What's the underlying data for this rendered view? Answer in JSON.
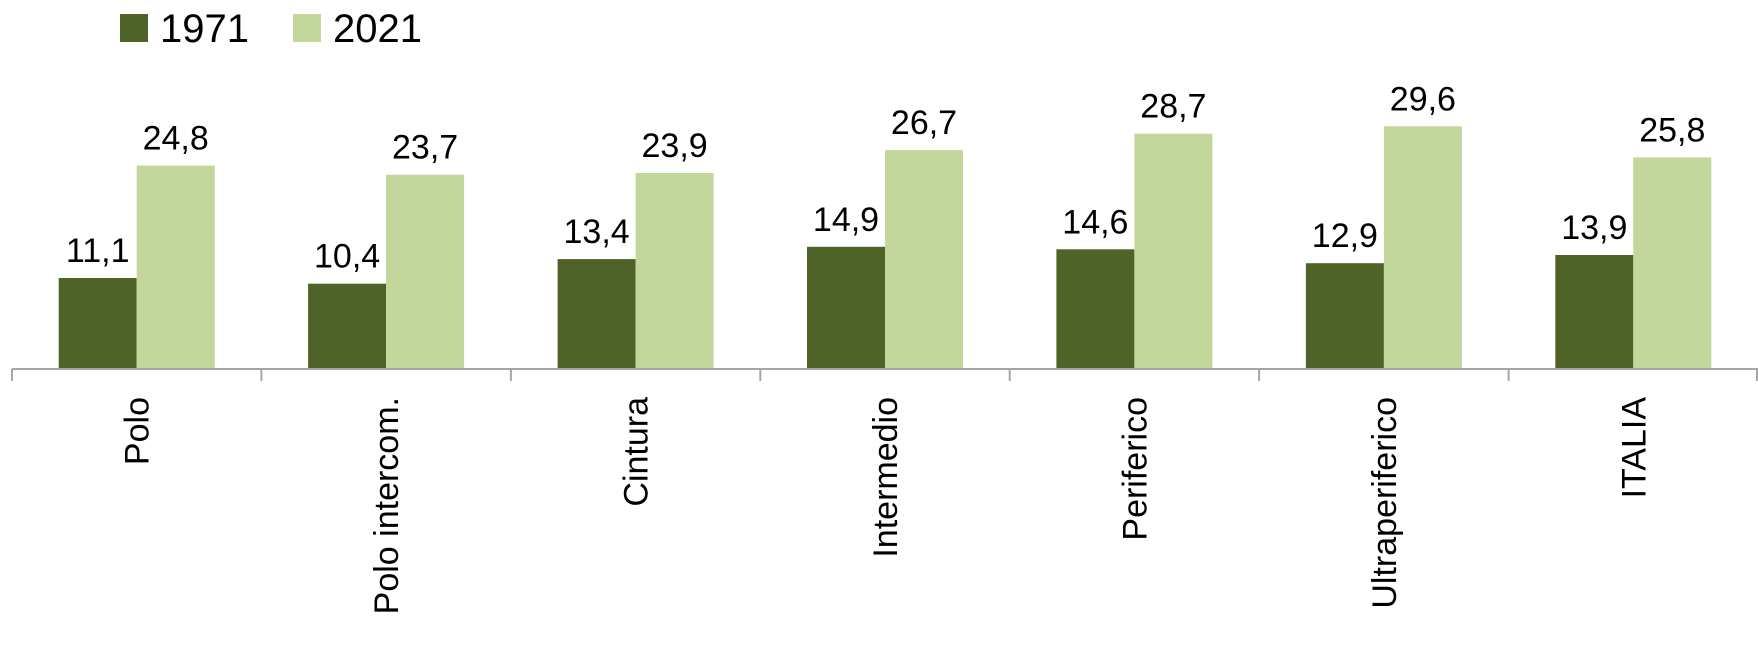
{
  "chart_data": {
    "type": "bar",
    "title": "",
    "xlabel": "",
    "ylabel": "",
    "categories": [
      "Polo",
      "Polo intercom.",
      "Cintura",
      "Intermedio",
      "Periferico",
      "Ultraperiferico",
      "ITALIA"
    ],
    "series": [
      {
        "name": "1971",
        "color": "#4f6228",
        "values": [
          11.1,
          10.4,
          13.4,
          14.9,
          14.6,
          12.9,
          13.9
        ]
      },
      {
        "name": "2021",
        "color": "#c3d69b",
        "values": [
          24.8,
          23.7,
          23.9,
          26.7,
          28.7,
          29.6,
          25.8
        ]
      }
    ],
    "value_labels": [
      [
        "11,1",
        "10,4",
        "13,4",
        "14,9",
        "14,6",
        "12,9",
        "13,9"
      ],
      [
        "24,8",
        "23,7",
        "23,9",
        "26,7",
        "28,7",
        "29,6",
        "25,8"
      ]
    ],
    "ylim": [
      0,
      30
    ],
    "grid": false,
    "y_axis_visible": false,
    "legend_position": "top-left",
    "axis_color": "#a6a6a6"
  }
}
